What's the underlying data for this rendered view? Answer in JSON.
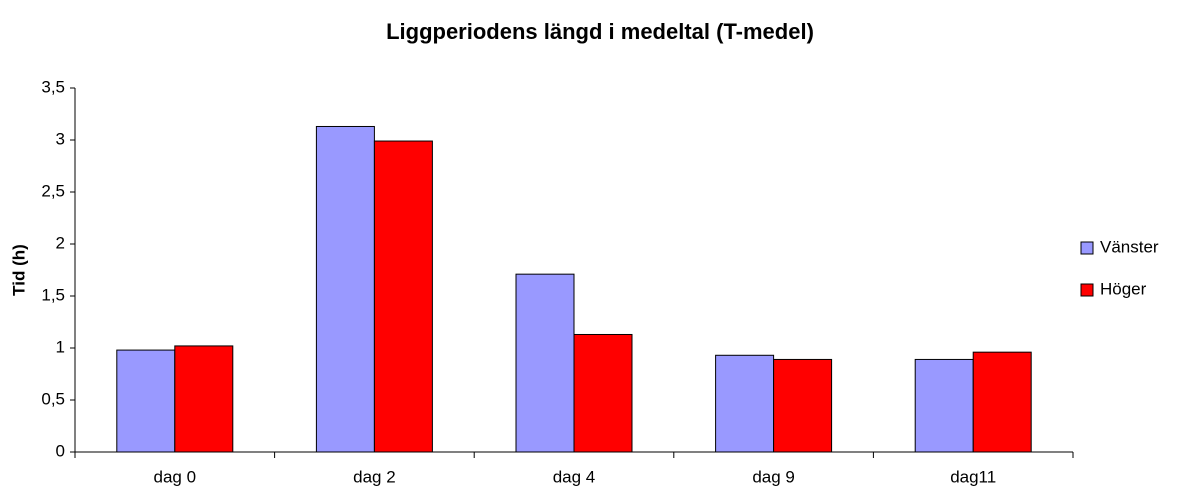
{
  "chart_data": {
    "type": "bar",
    "title": "Liggperiodens längd i medeltal (T-medel)",
    "ylabel": "Tid (h)",
    "categories": [
      "dag 0",
      "dag 2",
      "dag 4",
      "dag 9",
      "dag11"
    ],
    "series": [
      {
        "name": "Vänster",
        "color": "#9999ff",
        "values": [
          0.98,
          3.13,
          1.71,
          0.93,
          0.89
        ]
      },
      {
        "name": "Höger",
        "color": "#ff0000",
        "values": [
          1.02,
          2.99,
          1.13,
          0.89,
          0.96
        ]
      }
    ],
    "ylim": [
      0,
      3.5
    ],
    "yticks": [
      0,
      {
        "value": 0.5,
        "label": "0,5"
      },
      1,
      {
        "value": 1.5,
        "label": "1,5"
      },
      2,
      {
        "value": 2.5,
        "label": "2,5"
      },
      3,
      {
        "value": 3.5,
        "label": "3,5"
      }
    ],
    "grid": false,
    "legend": "right"
  }
}
